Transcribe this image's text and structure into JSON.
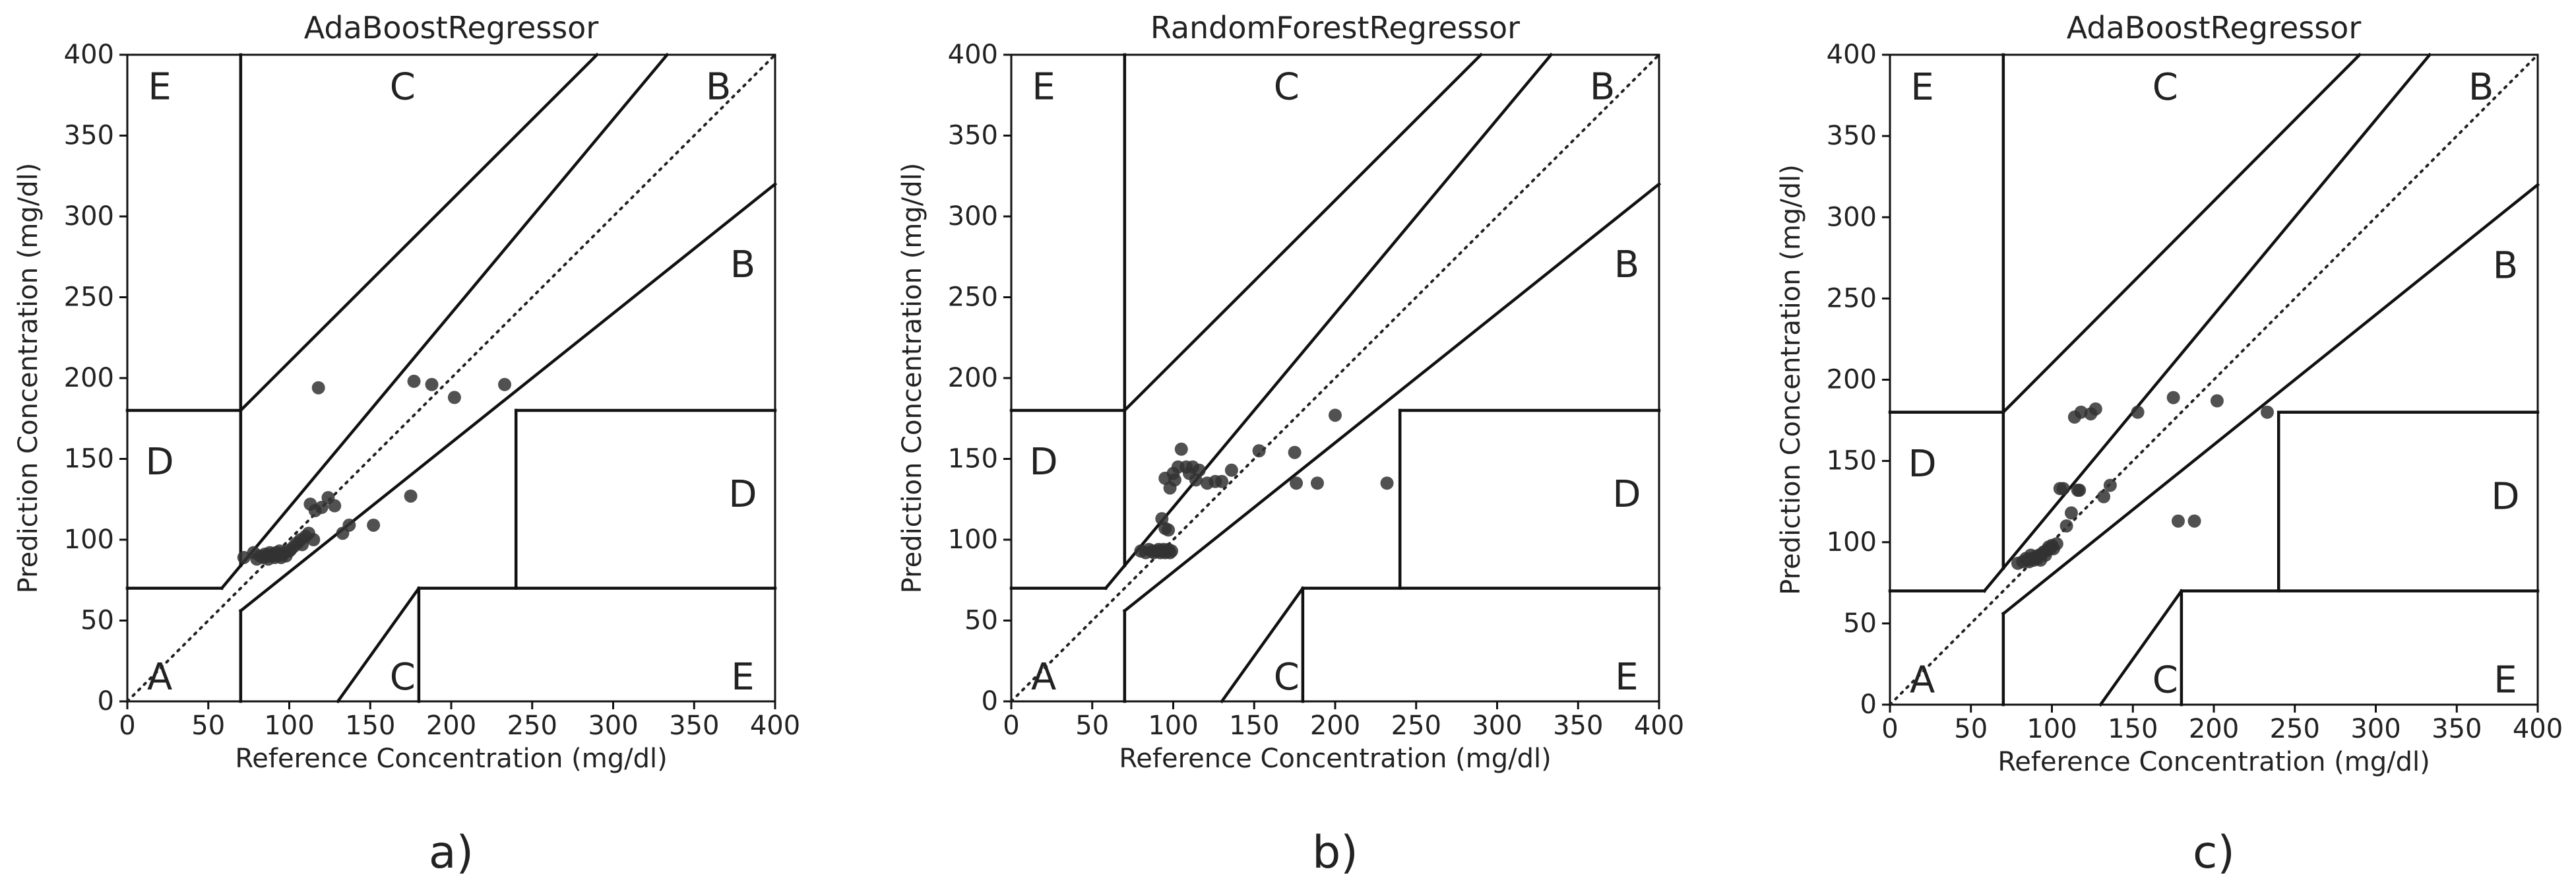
{
  "figure": {
    "captions": [
      "a)",
      "b)",
      "c)"
    ]
  },
  "chart_data": [
    {
      "type": "scatter",
      "title": "AdaBoostRegressor",
      "xlabel": "Reference Concentration (mg/dl)",
      "ylabel": "Prediction Concentration (mg/dl)",
      "xlim": [
        0,
        400
      ],
      "ylim": [
        0,
        400
      ],
      "xticks": [
        "0",
        "50",
        "100",
        "150",
        "200",
        "250",
        "300",
        "350",
        "400"
      ],
      "yticks": [
        "0",
        "50",
        "100",
        "150",
        "200",
        "250",
        "300",
        "350",
        "400"
      ],
      "grid": false,
      "zones": [
        "A",
        "B",
        "B",
        "C",
        "C",
        "D",
        "D",
        "E",
        "E"
      ],
      "x": [
        72,
        78,
        80,
        82,
        84,
        85,
        86,
        87,
        88,
        89,
        90,
        91,
        92,
        93,
        94,
        95,
        96,
        97,
        98,
        100,
        101,
        103,
        105,
        107,
        108,
        110,
        112,
        113,
        115,
        116,
        118,
        120,
        124,
        128,
        133,
        137,
        152,
        175,
        177,
        188,
        202,
        233
      ],
      "y": [
        89,
        92,
        88,
        90,
        89,
        91,
        90,
        88,
        92,
        90,
        91,
        89,
        92,
        90,
        93,
        89,
        91,
        92,
        90,
        93,
        94,
        96,
        98,
        100,
        97,
        102,
        104,
        122,
        100,
        118,
        194,
        120,
        126,
        121,
        104,
        109,
        109,
        127,
        198,
        196,
        188,
        196
      ]
    },
    {
      "type": "scatter",
      "title": "RandomForestRegressor",
      "xlabel": "Reference Concentration (mg/dl)",
      "ylabel": "Prediction Concentration (mg/dl)",
      "xlim": [
        0,
        400
      ],
      "ylim": [
        0,
        400
      ],
      "xticks": [
        "0",
        "50",
        "100",
        "150",
        "200",
        "250",
        "300",
        "350",
        "400"
      ],
      "yticks": [
        "0",
        "50",
        "100",
        "150",
        "200",
        "250",
        "300",
        "350",
        "400"
      ],
      "grid": false,
      "zones": [
        "A",
        "B",
        "B",
        "C",
        "C",
        "D",
        "D",
        "E",
        "E"
      ],
      "x": [
        80,
        83,
        85,
        87,
        88,
        90,
        91,
        92,
        93,
        94,
        95,
        96,
        97,
        98,
        99,
        93,
        95,
        97,
        95,
        98,
        101,
        100,
        103,
        105,
        108,
        110,
        112,
        114,
        116,
        121,
        126,
        130,
        136,
        153,
        175,
        176,
        189,
        200,
        232
      ],
      "y": [
        93,
        92,
        94,
        93,
        92,
        93,
        94,
        92,
        93,
        94,
        92,
        93,
        94,
        92,
        93,
        113,
        107,
        106,
        138,
        132,
        137,
        141,
        145,
        156,
        145,
        141,
        145,
        137,
        143,
        135,
        136,
        136,
        143,
        155,
        154,
        135,
        135,
        177,
        135
      ]
    },
    {
      "type": "scatter",
      "title": "AdaBoostRegressor",
      "xlabel": "Reference Concentration (mg/dl)",
      "ylabel": "Prediction Concentration (mg/dl)",
      "xlim": [
        0,
        400
      ],
      "ylim": [
        0,
        400
      ],
      "xticks": [
        "0",
        "50",
        "100",
        "150",
        "200",
        "250",
        "300",
        "350",
        "400"
      ],
      "yticks": [
        "0",
        "50",
        "100",
        "150",
        "200",
        "250",
        "300",
        "350",
        "400"
      ],
      "grid": false,
      "zones": [
        "A",
        "B",
        "B",
        "C",
        "C",
        "D",
        "D",
        "E",
        "E"
      ],
      "x": [
        79,
        82,
        84,
        85,
        86,
        87,
        88,
        89,
        90,
        91,
        92,
        93,
        94,
        95,
        96,
        97,
        98,
        99,
        100,
        101,
        103,
        105,
        107,
        109,
        112,
        114,
        116,
        117,
        118,
        124,
        127,
        132,
        136,
        153,
        175,
        178,
        188,
        202,
        233
      ],
      "y": [
        87,
        88,
        90,
        89,
        88,
        92,
        90,
        89,
        91,
        90,
        92,
        89,
        93,
        94,
        92,
        95,
        97,
        96,
        98,
        96,
        99,
        133,
        133,
        110,
        118,
        177,
        132,
        132,
        180,
        179,
        182,
        128,
        135,
        180,
        189,
        113,
        113,
        187,
        180
      ]
    }
  ]
}
